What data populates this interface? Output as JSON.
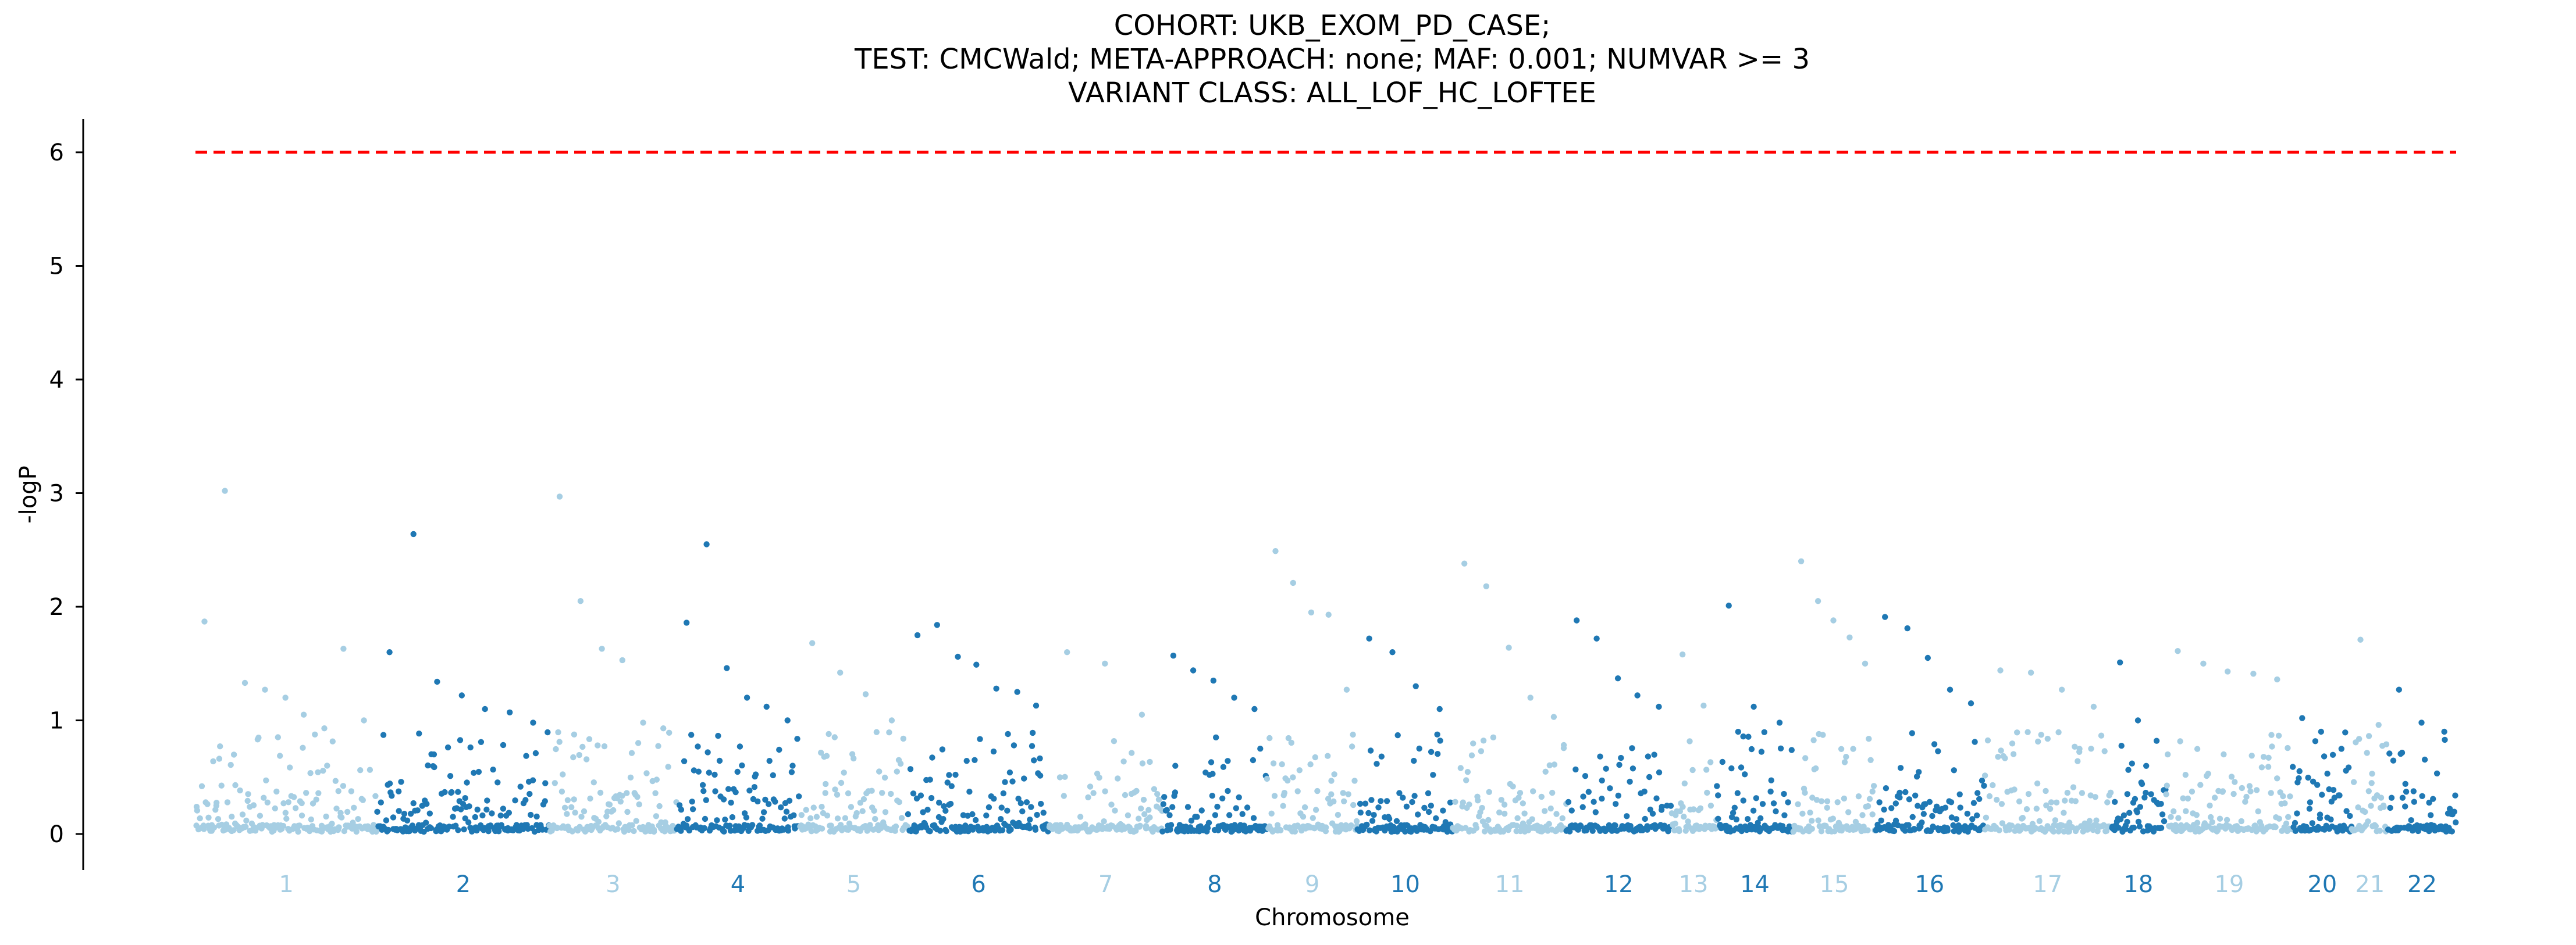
{
  "chart_data": {
    "type": "scatter",
    "title_lines": [
      "COHORT: UKB_EXOM_PD_CASE;",
      "TEST: CMCWald; META-APPROACH: none; MAF: 0.001; NUMVAR >= 3",
      "VARIANT CLASS: ALL_LOF_HC_LOFTEE"
    ],
    "xlabel": "Chromosome",
    "ylabel": "-logP",
    "ylim": [
      -0.3,
      6.3
    ],
    "yticks": [
      0,
      1,
      2,
      3,
      4,
      5,
      6
    ],
    "threshold": 6,
    "colors": {
      "light": "#a6cee3",
      "dark": "#1f78b4",
      "threshold": "#ff0000"
    },
    "chromosomes": [
      {
        "label": "1",
        "n": 200,
        "color": "light",
        "peaks": [
          1.87,
          3.02,
          1.33,
          1.27,
          1.2,
          1.05,
          0.93,
          1.63,
          1.0
        ]
      },
      {
        "label": "2",
        "n": 190,
        "color": "dark",
        "peaks": [
          1.6,
          2.64,
          1.34,
          1.22,
          1.1,
          1.07,
          0.98
        ]
      },
      {
        "label": "3",
        "n": 140,
        "color": "light",
        "peaks": [
          2.97,
          2.05,
          1.63,
          1.53,
          0.98,
          0.93
        ]
      },
      {
        "label": "4",
        "n": 135,
        "color": "dark",
        "peaks": [
          1.86,
          2.55,
          1.46,
          1.2,
          1.12,
          1.0
        ]
      },
      {
        "label": "5",
        "n": 120,
        "color": "light",
        "peaks": [
          1.68,
          1.42,
          1.23,
          1.0
        ]
      },
      {
        "label": "6",
        "n": 155,
        "color": "dark",
        "peaks": [
          1.75,
          1.84,
          1.56,
          1.49,
          1.28,
          1.25,
          1.13
        ]
      },
      {
        "label": "7",
        "n": 125,
        "color": "light",
        "peaks": [
          1.6,
          1.5,
          1.05
        ]
      },
      {
        "label": "8",
        "n": 115,
        "color": "dark",
        "peaks": [
          1.57,
          1.44,
          1.35,
          1.2,
          1.1
        ]
      },
      {
        "label": "9",
        "n": 100,
        "color": "light",
        "peaks": [
          2.49,
          2.21,
          1.95,
          1.93,
          1.27
        ]
      },
      {
        "label": "10",
        "n": 105,
        "color": "dark",
        "peaks": [
          1.72,
          1.6,
          1.3,
          1.1
        ]
      },
      {
        "label": "11",
        "n": 125,
        "color": "light",
        "peaks": [
          2.38,
          2.18,
          1.64,
          1.2,
          1.03
        ]
      },
      {
        "label": "12",
        "n": 115,
        "color": "dark",
        "peaks": [
          1.88,
          1.72,
          1.37,
          1.22,
          1.12
        ]
      },
      {
        "label": "13",
        "n": 50,
        "color": "light",
        "peaks": [
          1.58,
          1.13
        ]
      },
      {
        "label": "14",
        "n": 85,
        "color": "dark",
        "peaks": [
          2.01,
          1.12,
          0.98
        ]
      },
      {
        "label": "15",
        "n": 90,
        "color": "light",
        "peaks": [
          2.4,
          2.05,
          1.88,
          1.73,
          1.5
        ]
      },
      {
        "label": "16",
        "n": 120,
        "color": "dark",
        "peaks": [
          1.91,
          1.81,
          1.55,
          1.27,
          1.15
        ]
      },
      {
        "label": "17",
        "n": 140,
        "color": "light",
        "peaks": [
          1.44,
          1.42,
          1.27,
          1.12
        ]
      },
      {
        "label": "18",
        "n": 60,
        "color": "dark",
        "peaks": [
          1.51,
          1.0,
          0.82
        ]
      },
      {
        "label": "19",
        "n": 140,
        "color": "light",
        "peaks": [
          1.61,
          1.5,
          1.43,
          1.41,
          1.36
        ]
      },
      {
        "label": "20",
        "n": 65,
        "color": "dark",
        "peaks": [
          1.02,
          0.9,
          0.75
        ]
      },
      {
        "label": "21",
        "n": 40,
        "color": "light",
        "peaks": [
          1.71,
          0.96
        ]
      },
      {
        "label": "22",
        "n": 75,
        "color": "dark",
        "peaks": [
          1.27,
          0.98,
          0.9
        ]
      }
    ]
  }
}
